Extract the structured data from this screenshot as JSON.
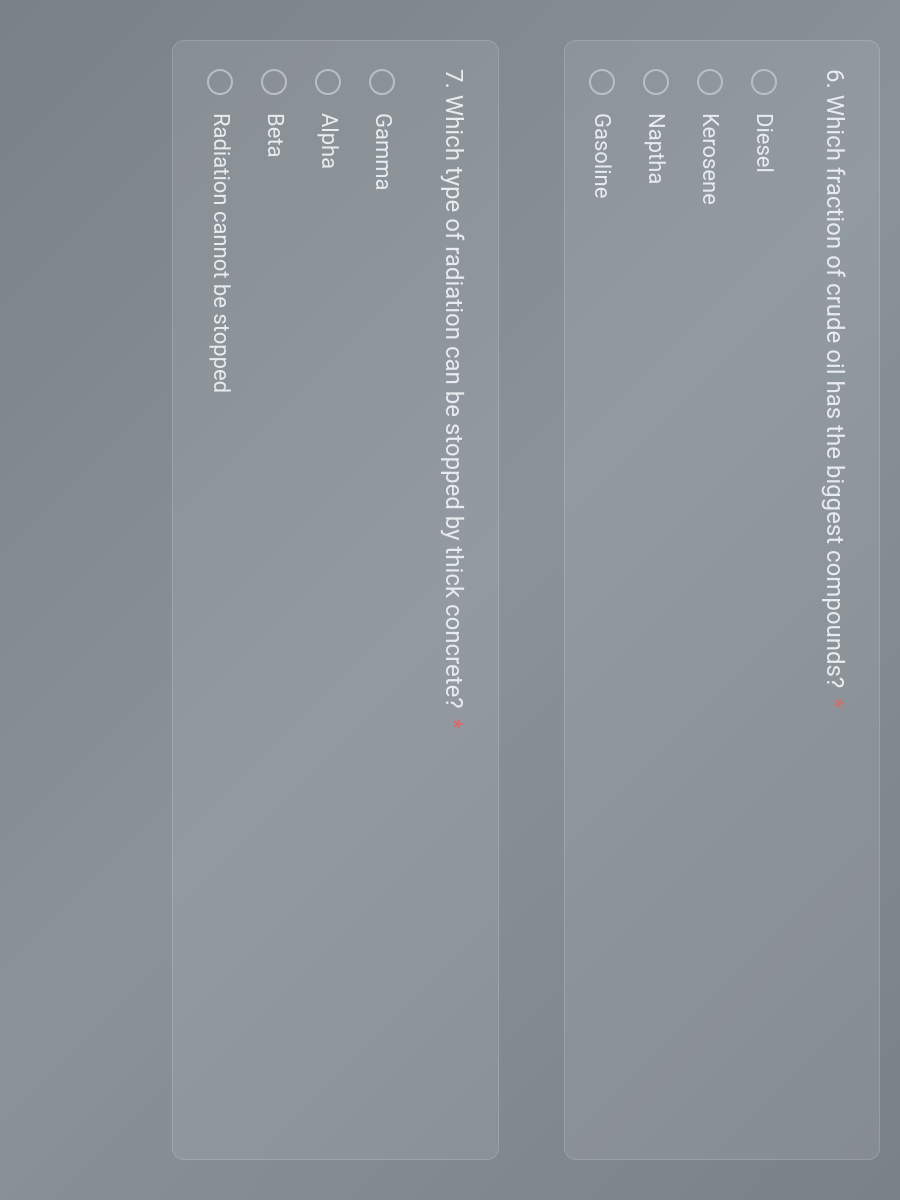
{
  "questions": [
    {
      "number": "6",
      "text": "Which fraction of crude oil has the biggest compounds?",
      "required": true,
      "options": [
        {
          "label": "Diesel"
        },
        {
          "label": "Kerosene"
        },
        {
          "label": "Naptha"
        },
        {
          "label": "Gasoline"
        }
      ]
    },
    {
      "number": "7",
      "text": "Which type of radiation can be stopped by thick concrete?",
      "required": true,
      "options": [
        {
          "label": "Gamma"
        },
        {
          "label": "Alpha"
        },
        {
          "label": "Beta"
        },
        {
          "label": "Radiation cannot be stopped"
        }
      ]
    }
  ],
  "styling": {
    "background_gradient": [
      "#7a8288",
      "#8a929a",
      "#7a8288"
    ],
    "card_background": "rgba(255,255,255,0.08)",
    "card_border": "rgba(255,255,255,0.15)",
    "text_color": "#e8ebee",
    "asterisk_color": "#d86a6a",
    "radio_border_color": "#b8bfc5",
    "question_fontsize": 24,
    "option_fontsize": 22,
    "radio_size": 26,
    "card_radius": 12
  }
}
